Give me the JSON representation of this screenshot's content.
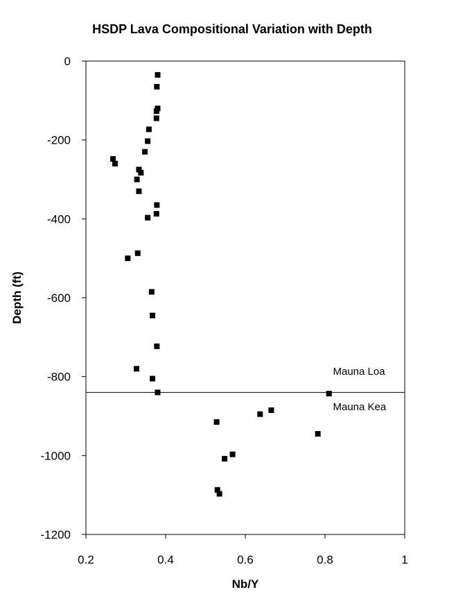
{
  "chart_data": {
    "type": "scatter",
    "title": "HSDP Lava Compositional Variation with Depth",
    "xlabel": "Nb/Y",
    "ylabel": "Depth (ft)",
    "xlim": [
      0.2,
      1.0
    ],
    "ylim": [
      -1200,
      0
    ],
    "x_ticks": [
      "0.2",
      "0.4",
      "0.6",
      "0.8",
      "1"
    ],
    "y_ticks": [
      "0",
      "-200",
      "-400",
      "-600",
      "-800",
      "-1000",
      "-1200"
    ],
    "grid": false,
    "legend": null,
    "marker_color": "#000000",
    "series": [
      {
        "points": [
          {
            "x": 0.38,
            "y": -35
          },
          {
            "x": 0.378,
            "y": -65
          },
          {
            "x": 0.38,
            "y": -120
          },
          {
            "x": 0.377,
            "y": -127
          },
          {
            "x": 0.377,
            "y": -145
          },
          {
            "x": 0.358,
            "y": -173
          },
          {
            "x": 0.355,
            "y": -203
          },
          {
            "x": 0.348,
            "y": -230
          },
          {
            "x": 0.268,
            "y": -248
          },
          {
            "x": 0.273,
            "y": -260
          },
          {
            "x": 0.333,
            "y": -275
          },
          {
            "x": 0.338,
            "y": -283
          },
          {
            "x": 0.328,
            "y": -300
          },
          {
            "x": 0.333,
            "y": -330
          },
          {
            "x": 0.378,
            "y": -365
          },
          {
            "x": 0.377,
            "y": -387
          },
          {
            "x": 0.355,
            "y": -397
          },
          {
            "x": 0.33,
            "y": -487
          },
          {
            "x": 0.305,
            "y": -500
          },
          {
            "x": 0.365,
            "y": -585
          },
          {
            "x": 0.367,
            "y": -645
          },
          {
            "x": 0.378,
            "y": -723
          },
          {
            "x": 0.327,
            "y": -780
          },
          {
            "x": 0.367,
            "y": -805
          },
          {
            "x": 0.38,
            "y": -840
          },
          {
            "x": 0.81,
            "y": -843
          },
          {
            "x": 0.665,
            "y": -885
          },
          {
            "x": 0.637,
            "y": -895
          },
          {
            "x": 0.528,
            "y": -915
          },
          {
            "x": 0.782,
            "y": -945
          },
          {
            "x": 0.568,
            "y": -997
          },
          {
            "x": 0.548,
            "y": -1008
          },
          {
            "x": 0.53,
            "y": -1087
          },
          {
            "x": 0.535,
            "y": -1097
          }
        ]
      }
    ],
    "reference_line": {
      "y": -840
    },
    "annotations": [
      {
        "text": "Mauna Loa",
        "x": 0.82,
        "y": -795
      },
      {
        "text": "Mauna Kea",
        "x": 0.82,
        "y": -885
      }
    ]
  }
}
